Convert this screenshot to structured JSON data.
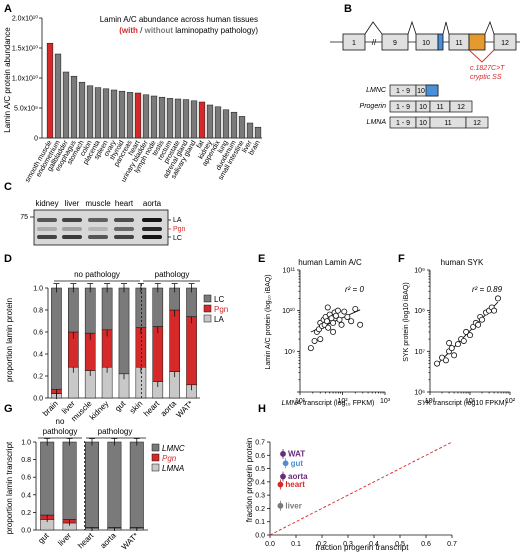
{
  "panels": {
    "A": {
      "letter": "A",
      "title_line1": "Lamin A/C abundance across human tissues",
      "title_with": "(with",
      "title_sep": " / ",
      "title_without": "without",
      "title_end": " laminopathy pathology)",
      "ylabel": "Lamin A/C protein abundance",
      "yticks": [
        "0",
        "5.0x10⁹",
        "1.0x10¹⁰",
        "1.5x10¹⁰",
        "2.0x10¹⁰"
      ]
    },
    "B": {
      "letter": "B",
      "exons": [
        "1",
        "9",
        "10",
        "11",
        "12"
      ],
      "break_mark": "//",
      "annotation_line1": "c.1827C>T",
      "annotation_line2": "cryptic SS",
      "isoforms": [
        {
          "name": "LMNC",
          "boxes": [
            "1 - 9",
            "10"
          ]
        },
        {
          "name": "Progerin",
          "boxes": [
            "1 - 9",
            "10",
            "11",
            "12"
          ]
        },
        {
          "name": "LMNA",
          "boxes": [
            "1 - 9",
            "10",
            "11",
            "12"
          ]
        }
      ]
    },
    "C": {
      "letter": "C",
      "marker": "75",
      "lanes": [
        "kidney",
        "liver",
        "muscle",
        "heart",
        "aorta"
      ],
      "band_labels": [
        "LA",
        "Pgn",
        "LC"
      ]
    },
    "D": {
      "letter": "D",
      "group_no": "no pathology",
      "group_yes": "pathology",
      "ylabel": "proportion lamin protein",
      "yticks": [
        "0.0",
        "0.2",
        "0.4",
        "0.6",
        "0.8",
        "1.0"
      ],
      "legend": [
        "LC",
        "Pgn",
        "LA"
      ]
    },
    "E": {
      "letter": "E",
      "title": "human Lamin A/C",
      "ylabel": "Lamin A/C protein (log₁₀ iBAQ)",
      "xlabel_gene": "LMNA",
      "xlabel_rest": " transcript (log₁₀ FPKM)",
      "r2": "r² = 0",
      "yticks": [
        "10⁹",
        "10¹⁰",
        "10¹¹"
      ],
      "xticks": [
        "10¹",
        "10²",
        "10³"
      ]
    },
    "F": {
      "letter": "F",
      "title": "human SYK",
      "ylabel": "SYK protein (log10 iBAQ)",
      "xlabel_gene": "SYK",
      "xlabel_rest": " transcript (log10 FPKM)",
      "r2": "r² = 0.89",
      "yticks": [
        "10⁶",
        "10⁷",
        "10⁸",
        "10⁹"
      ],
      "xticks": [
        "10⁰",
        "10¹",
        "10²"
      ]
    },
    "G": {
      "letter": "G",
      "group_no_1": "no",
      "group_no_2": "pathology",
      "group_yes": "pathology",
      "ylabel": "proportion lamin transcript",
      "yticks": [
        "0.0",
        "0.2",
        "0.4",
        "0.6",
        "0.8",
        "1.0"
      ],
      "legend": [
        "LMNC",
        "Pgn",
        "LMNA"
      ]
    },
    "H": {
      "letter": "H",
      "ylabel": "fraction progerin protein",
      "xlabel": "fraction progerin transcript",
      "ticks": [
        "0.0",
        "0.1",
        "0.2",
        "0.3",
        "0.4",
        "0.5",
        "0.6",
        "0.7"
      ]
    }
  },
  "colors": {
    "red": "#d62a2a",
    "dark_gray": "#7a7a7a",
    "light_gray": "#c8c8c8",
    "blue": "#4a90d9",
    "orange": "#e39a2f",
    "purple": "#6a2c7a"
  },
  "chart_data": [
    {
      "panel": "A",
      "type": "bar",
      "categories": [
        "smooth muscle",
        "endometrium",
        "gallbladder",
        "esophagus",
        "stomach",
        "colon",
        "placenta",
        "spleen",
        "ovary",
        "thyroid",
        "pancreas",
        "heart",
        "urinary bladder",
        "lymph node",
        "testis",
        "rectum",
        "prostate",
        "adrenal gland",
        "salivary gland",
        "fat",
        "kidney",
        "appendix",
        "lung",
        "duodenum",
        "small intestine",
        "liver",
        "brain"
      ],
      "values": [
        15800000000.0,
        14000000000.0,
        11000000000.0,
        10300000000.0,
        9300000000.0,
        8700000000.0,
        8400000000.0,
        8200000000.0,
        8000000000.0,
        7800000000.0,
        7600000000.0,
        7500000000.0,
        7200000000.0,
        7000000000.0,
        6800000000.0,
        6600000000.0,
        6500000000.0,
        6400000000.0,
        6200000000.0,
        6000000000.0,
        5500000000.0,
        5200000000.0,
        4700000000.0,
        4300000000.0,
        3600000000.0,
        2500000000.0,
        1800000000.0
      ],
      "highlighted": [
        "smooth muscle",
        "heart",
        "fat"
      ],
      "ylim": [
        0,
        20000000000.0
      ]
    },
    {
      "panel": "D",
      "type": "bar",
      "stacked": true,
      "categories": [
        "brain",
        "liver",
        "muscle",
        "kidney",
        "gut",
        "skin",
        "heart",
        "aorta",
        "WAT*"
      ],
      "series": [
        {
          "name": "LA",
          "values": [
            0.04,
            0.28,
            0.25,
            0.28,
            0.22,
            0.28,
            0.15,
            0.24,
            0.12
          ]
        },
        {
          "name": "Pgn",
          "values": [
            0.04,
            0.32,
            0.34,
            0.34,
            0.0,
            0.36,
            0.5,
            0.56,
            0.62
          ]
        },
        {
          "name": "LC",
          "values": [
            0.92,
            0.4,
            0.41,
            0.38,
            0.78,
            0.36,
            0.35,
            0.2,
            0.26
          ]
        }
      ],
      "ylim": [
        0,
        1.0
      ]
    },
    {
      "panel": "E",
      "type": "scatter",
      "x": [
        18,
        22,
        25,
        28,
        30,
        33,
        36,
        38,
        40,
        43,
        46,
        50,
        55,
        60,
        65,
        70,
        78,
        85,
        95,
        110,
        130,
        160,
        200,
        260,
        30,
        45,
        60
      ],
      "y": [
        1200000000.0,
        1800000000.0,
        3000000000.0,
        3500000000.0,
        5000000000.0,
        4200000000.0,
        6000000000.0,
        4500000000.0,
        7000000000.0,
        5500000000.0,
        3800000000.0,
        8000000000.0,
        6500000000.0,
        5000000000.0,
        9000000000.0,
        7500000000.0,
        10000000000.0,
        6000000000.0,
        4500000000.0,
        9500000000.0,
        7000000000.0,
        5500000000.0,
        11000000000.0,
        4500000000.0,
        2000000000.0,
        12000000000.0,
        3000000000.0
      ],
      "log_x": true,
      "log_y": true,
      "xlim": [
        10,
        1000
      ],
      "ylim": [
        100000000.0,
        100000000000.0
      ]
    },
    {
      "panel": "F",
      "type": "scatter",
      "x": [
        1.5,
        2.0,
        2.5,
        3.0,
        3.5,
        4.0,
        5.0,
        6.0,
        7.0,
        8.0,
        10,
        12,
        14,
        16,
        18,
        20,
        25,
        30,
        35,
        40,
        50,
        3.0
      ],
      "y": [
        5000000.0,
        7000000.0,
        6000000.0,
        10000000.0,
        12000000.0,
        8000000.0,
        15000000.0,
        20000000.0,
        18000000.0,
        30000000.0,
        25000000.0,
        40000000.0,
        50000000.0,
        45000000.0,
        70000000.0,
        60000000.0,
        90000000.0,
        100000000.0,
        120000000.0,
        100000000.0,
        200000000.0,
        16000000.0
      ],
      "log_x": true,
      "log_y": true,
      "xlim": [
        1,
        100
      ],
      "ylim": [
        1000000.0,
        1000000000.0
      ]
    },
    {
      "panel": "G",
      "type": "bar",
      "stacked": true,
      "categories": [
        "gut",
        "liver",
        "heart",
        "aorta",
        "WAT*"
      ],
      "series": [
        {
          "name": "LMNA",
          "values": [
            0.12,
            0.08,
            0.02,
            0.02,
            0.02
          ]
        },
        {
          "name": "Pgn",
          "values": [
            0.05,
            0.04,
            0.01,
            0.01,
            0.01
          ]
        },
        {
          "name": "LMNC",
          "values": [
            0.83,
            0.88,
            0.97,
            0.97,
            0.97
          ]
        }
      ],
      "ylim": [
        0,
        1.0
      ]
    },
    {
      "panel": "H",
      "type": "scatter",
      "points": [
        {
          "label": "WAT",
          "x": 0.05,
          "y": 0.61,
          "color": "#6a2c7a"
        },
        {
          "label": "gut",
          "x": 0.06,
          "y": 0.54,
          "color": "#4a90d9"
        },
        {
          "label": "aorta",
          "x": 0.05,
          "y": 0.44,
          "color": "#6a2c7a"
        },
        {
          "label": "heart",
          "x": 0.04,
          "y": 0.38,
          "color": "#d62a2a"
        },
        {
          "label": "liver",
          "x": 0.04,
          "y": 0.22,
          "color": "#7a7a7a"
        }
      ],
      "xlim": [
        0,
        0.7
      ],
      "ylim": [
        0,
        0.7
      ]
    }
  ]
}
